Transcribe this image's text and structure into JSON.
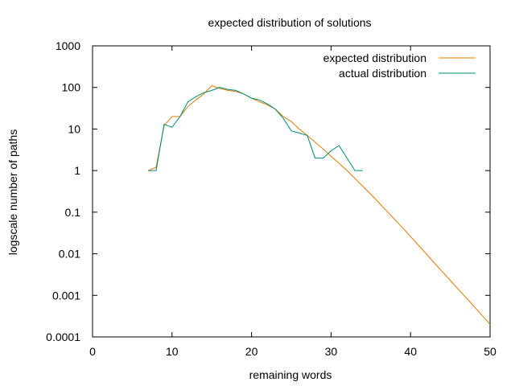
{
  "chart_data": {
    "type": "line",
    "title": "expected distribution of solutions",
    "xlabel": "remaining words",
    "ylabel": "logscale number of paths",
    "xlim": [
      0,
      50
    ],
    "ylim": [
      0.0001,
      1000
    ],
    "y_scale": "log",
    "x_ticks": [
      "0",
      "10",
      "20",
      "30",
      "40",
      "50"
    ],
    "x_tick_values": [
      0,
      10,
      20,
      30,
      40,
      50
    ],
    "y_ticks": [
      "0.0001",
      "0.001",
      "0.01",
      "0.1",
      "1",
      "10",
      "100",
      "1000"
    ],
    "y_tick_values": [
      0.0001,
      0.001,
      0.01,
      0.1,
      1,
      10,
      100,
      1000
    ],
    "legend_position": "top-right",
    "grid": false,
    "series": [
      {
        "name": "expected distribution",
        "color": "#e07b00",
        "x": [
          7,
          8,
          9,
          10,
          11,
          12,
          13,
          14,
          15,
          16,
          17,
          18,
          19,
          20,
          21,
          22,
          23,
          24,
          25,
          26,
          27,
          28,
          29,
          30,
          31,
          32,
          33,
          34,
          35,
          36,
          37,
          38,
          39,
          40,
          41,
          42,
          43,
          44,
          45,
          46,
          47,
          48,
          49,
          50
        ],
        "y": [
          1,
          1.2,
          12,
          20,
          20,
          35,
          50,
          70,
          110,
          95,
          85,
          80,
          70,
          55,
          45,
          38,
          30,
          20,
          15,
          10,
          7,
          4.8,
          3.3,
          2.2,
          1.5,
          1.0,
          0.65,
          0.42,
          0.27,
          0.17,
          0.107,
          0.067,
          0.042,
          0.026,
          0.016,
          0.0098,
          0.006,
          0.0037,
          0.0023,
          0.0014,
          0.00087,
          0.00054,
          0.00033,
          0.0002
        ]
      },
      {
        "name": "actual distribution",
        "color": "#008b74",
        "x": [
          7,
          8,
          9,
          10,
          11,
          12,
          13,
          14,
          15,
          16,
          17,
          18,
          19,
          20,
          21,
          22,
          23,
          24,
          25,
          26,
          27,
          28,
          29,
          30,
          31,
          32,
          33,
          34
        ],
        "y": [
          1,
          1,
          13,
          11,
          20,
          45,
          60,
          75,
          85,
          100,
          90,
          85,
          70,
          55,
          50,
          40,
          30,
          18,
          9,
          8,
          7,
          2,
          2,
          3,
          4,
          2,
          1,
          1
        ]
      }
    ]
  }
}
